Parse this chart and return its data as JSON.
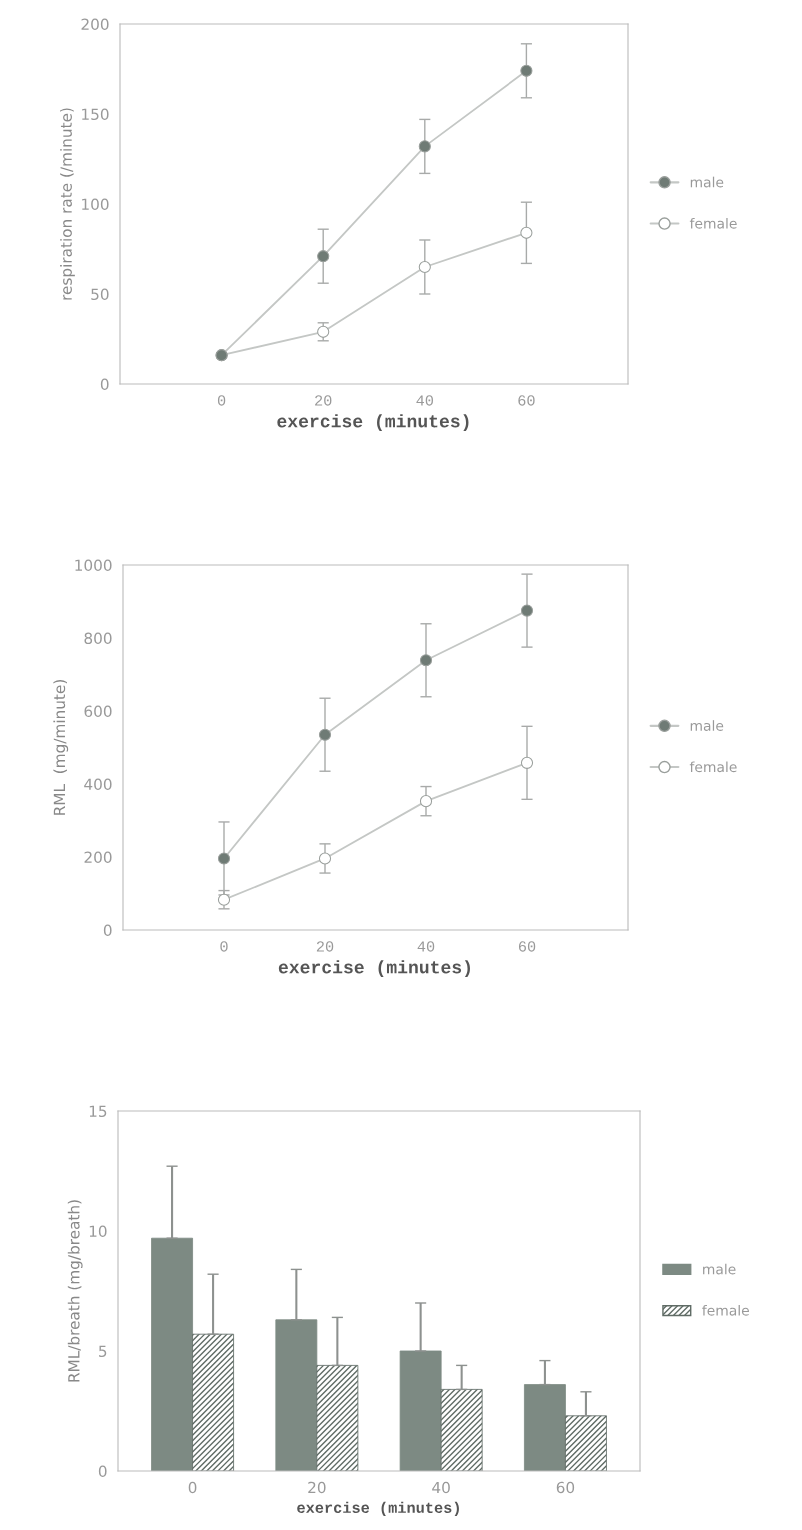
{
  "chart_data": [
    {
      "type": "line",
      "xlabel": "exercise (minutes)",
      "ylabel": "respiration rate (/minute)",
      "x": [
        0,
        20,
        40,
        60
      ],
      "xlim": [
        -20,
        80
      ],
      "xticks": [
        0,
        20,
        40,
        60
      ],
      "ylim": [
        0,
        200
      ],
      "yticks": [
        0,
        50,
        100,
        150,
        200
      ],
      "marker": "circle",
      "legend": "right",
      "grid": false,
      "series": [
        {
          "name": "male",
          "color": "#6f7b75",
          "values": [
            16,
            71,
            132,
            174
          ],
          "errors": [
            null,
            15,
            15,
            15
          ]
        },
        {
          "name": "female",
          "color": "#ffffff",
          "values": [
            16,
            29,
            65,
            84
          ],
          "errors": [
            null,
            5,
            15,
            17
          ]
        }
      ]
    },
    {
      "type": "line",
      "xlabel": "exercise (minutes)",
      "ylabel": "RML  (mg/minute)",
      "x": [
        0,
        20,
        40,
        60
      ],
      "xlim": [
        -20,
        80
      ],
      "xticks": [
        0,
        20,
        40,
        60
      ],
      "ylim": [
        0,
        1000
      ],
      "yticks": [
        0,
        200,
        400,
        600,
        800,
        1000
      ],
      "marker": "circle",
      "legend": "right",
      "grid": false,
      "series": [
        {
          "name": "male",
          "color": "#6f7b75",
          "values": [
            196,
            535,
            739,
            875
          ],
          "errors": [
            100,
            100,
            100,
            100
          ]
        },
        {
          "name": "female",
          "color": "#ffffff",
          "values": [
            83,
            196,
            353,
            458
          ],
          "errors": [
            25,
            40,
            40,
            100
          ]
        }
      ]
    },
    {
      "type": "bar",
      "xlabel": "exercise (minutes)",
      "ylabel": "RML/breath (mg/breath)",
      "categories": [
        "0",
        "20",
        "40",
        "60"
      ],
      "ylim": [
        0,
        15
      ],
      "yticks": [
        0,
        5,
        10,
        15
      ],
      "legend": "right",
      "grid": false,
      "series": [
        {
          "name": "male",
          "color": "#7d8a83",
          "values": [
            9.7,
            6.3,
            5.0,
            3.6
          ],
          "errors": [
            [
              9.7,
              12.7
            ],
            [
              6.3,
              8.4
            ],
            [
              5.0,
              7.0
            ],
            [
              3.6,
              4.6
            ]
          ]
        },
        {
          "name": "female",
          "color": "#5f6b65",
          "values": [
            5.7,
            4.4,
            3.4,
            2.3
          ],
          "errors": [
            [
              5.7,
              8.2
            ],
            [
              4.4,
              6.4
            ],
            [
              3.4,
              4.4
            ],
            [
              2.3,
              3.3
            ]
          ]
        }
      ]
    }
  ]
}
